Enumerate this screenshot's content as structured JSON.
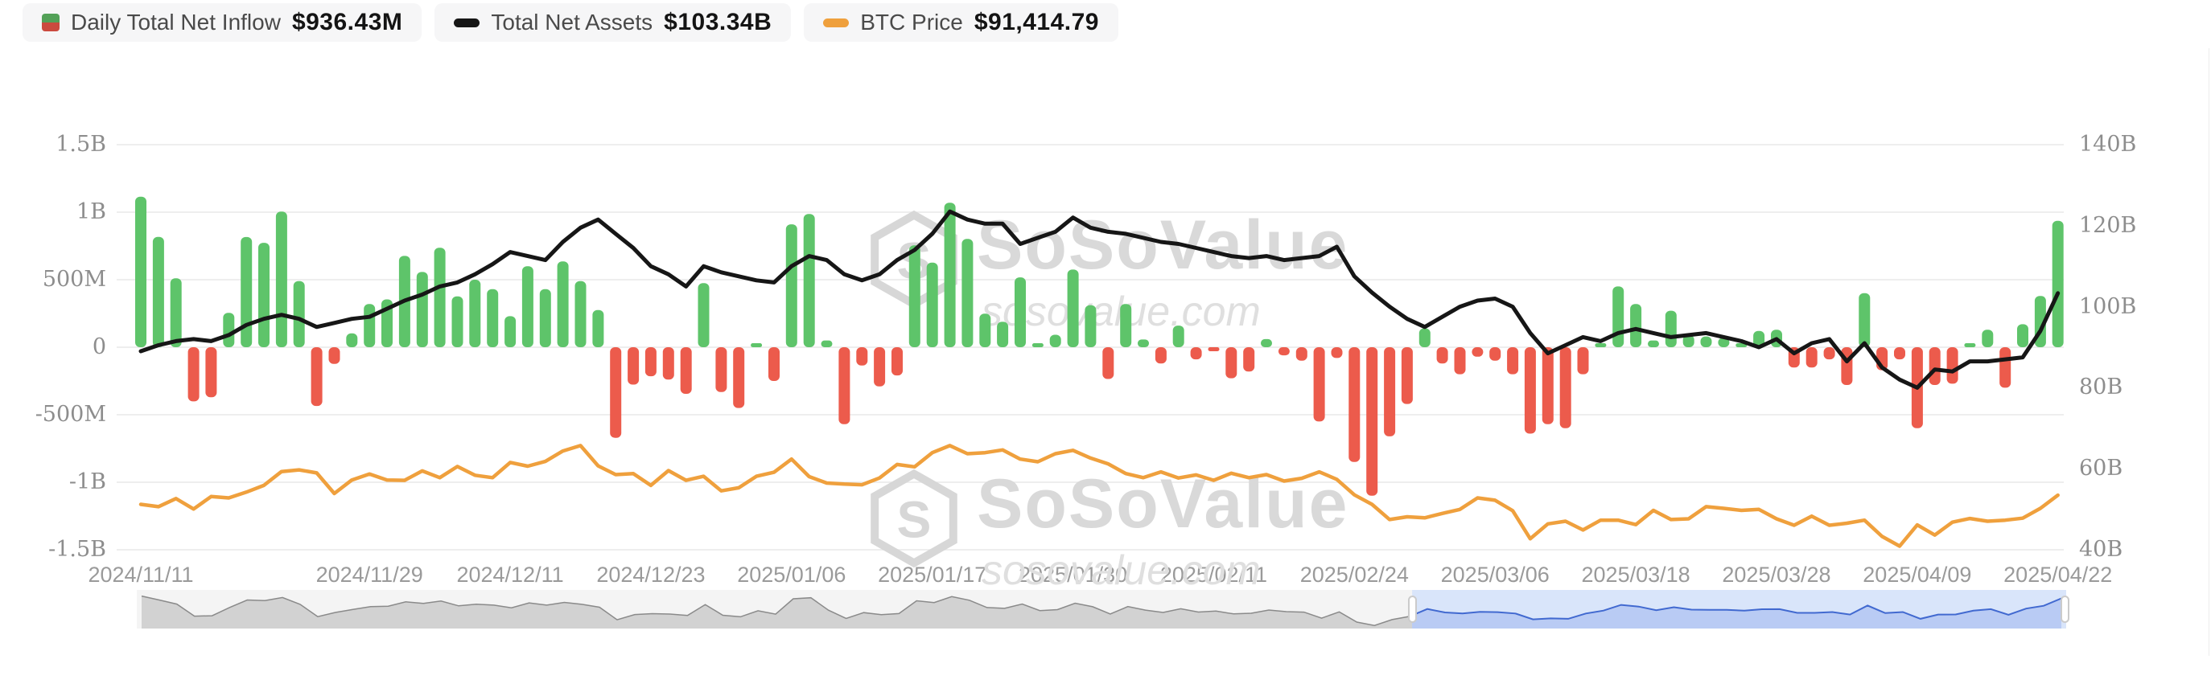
{
  "legend": [
    {
      "label": "Daily Total Net Inflow",
      "value": "$936.43M",
      "icon": "inflow-square"
    },
    {
      "label": "Total Net Assets",
      "value": "$103.34B",
      "icon": "black-dash"
    },
    {
      "label": "BTC Price",
      "value": "$91,414.79",
      "icon": "orange-dash"
    }
  ],
  "watermark": {
    "title": "SoSoValue",
    "domain": "sosovalue.com",
    "logo": "S"
  },
  "colors": {
    "bar_positive": "#5ec46a",
    "bar_negative": "#ec5b4c",
    "net_assets_line": "#161616",
    "btc_line": "#efa03d",
    "grid": "#e9e9e9",
    "legend_square_green": "#53a158",
    "legend_square_red": "#cb4a3e",
    "nav_gray_fill": "#d2d2d2",
    "nav_gray_line": "#8a8a8a",
    "nav_selected_bg": "#d9e5fa",
    "nav_selected_fill": "#b9cbf4",
    "nav_selected_line": "#4169d0"
  },
  "navigator": {
    "selection_start_ratio": 0.661,
    "selection_end_ratio": 1.0
  },
  "chart_data": {
    "type": "combo",
    "title": "",
    "grid": "horizontal",
    "left_axis": {
      "labels": [
        "1.5B",
        "1B",
        "500M",
        "0",
        "-500M",
        "-1B",
        "-1.5B"
      ],
      "min": -1500,
      "max": 1500,
      "unit": "USD"
    },
    "right_axis": {
      "labels": [
        "140B",
        "120B",
        "100B",
        "80B",
        "60B",
        "40B"
      ],
      "min": 40,
      "max": 140,
      "unit": "USD billions"
    },
    "x_ticks": [
      {
        "label": "2024/11/11",
        "index": 0
      },
      {
        "label": "2024/11/29",
        "index": 13
      },
      {
        "label": "2024/12/11",
        "index": 21
      },
      {
        "label": "2024/12/23",
        "index": 29
      },
      {
        "label": "2025/01/06",
        "index": 37
      },
      {
        "label": "2025/01/17",
        "index": 45
      },
      {
        "label": "2025/01/30",
        "index": 53
      },
      {
        "label": "2025/02/11",
        "index": 61
      },
      {
        "label": "2025/02/24",
        "index": 69
      },
      {
        "label": "2025/03/06",
        "index": 77
      },
      {
        "label": "2025/03/18",
        "index": 85
      },
      {
        "label": "2025/03/28",
        "index": 93
      },
      {
        "label": "2025/04/09",
        "index": 101
      },
      {
        "label": "2025/04/22",
        "index": 109
      }
    ],
    "x": [
      "2024/11/11",
      "2024/11/12",
      "2024/11/13",
      "2024/11/14",
      "2024/11/15",
      "2024/11/18",
      "2024/11/19",
      "2024/11/20",
      "2024/11/21",
      "2024/11/22",
      "2024/11/25",
      "2024/11/26",
      "2024/11/27",
      "2024/11/29",
      "2024/12/02",
      "2024/12/03",
      "2024/12/04",
      "2024/12/05",
      "2024/12/06",
      "2024/12/09",
      "2024/12/10",
      "2024/12/11",
      "2024/12/12",
      "2024/12/13",
      "2024/12/16",
      "2024/12/17",
      "2024/12/18",
      "2024/12/19",
      "2024/12/20",
      "2024/12/23",
      "2024/12/24",
      "2024/12/26",
      "2024/12/27",
      "2024/12/30",
      "2024/12/31",
      "2025/01/02",
      "2025/01/03",
      "2025/01/06",
      "2025/01/07",
      "2025/01/08",
      "2025/01/10",
      "2025/01/13",
      "2025/01/14",
      "2025/01/15",
      "2025/01/16",
      "2025/01/17",
      "2025/01/21",
      "2025/01/22",
      "2025/01/23",
      "2025/01/24",
      "2025/01/27",
      "2025/01/28",
      "2025/01/29",
      "2025/01/30",
      "2025/01/31",
      "2025/02/03",
      "2025/02/04",
      "2025/02/05",
      "2025/02/06",
      "2025/02/07",
      "2025/02/10",
      "2025/02/11",
      "2025/02/12",
      "2025/02/13",
      "2025/02/14",
      "2025/02/18",
      "2025/02/19",
      "2025/02/20",
      "2025/02/21",
      "2025/02/24",
      "2025/02/25",
      "2025/02/26",
      "2025/02/27",
      "2025/02/28",
      "2025/03/03",
      "2025/03/04",
      "2025/03/05",
      "2025/03/06",
      "2025/03/07",
      "2025/03/10",
      "2025/03/11",
      "2025/03/12",
      "2025/03/13",
      "2025/03/14",
      "2025/03/17",
      "2025/03/18",
      "2025/03/19",
      "2025/03/20",
      "2025/03/21",
      "2025/03/24",
      "2025/03/25",
      "2025/03/26",
      "2025/03/27",
      "2025/03/28",
      "2025/03/31",
      "2025/04/01",
      "2025/04/02",
      "2025/04/03",
      "2025/04/04",
      "2025/04/07",
      "2025/04/08",
      "2025/04/09",
      "2025/04/10",
      "2025/04/11",
      "2025/04/14",
      "2025/04/15",
      "2025/04/16",
      "2025/04/17",
      "2025/04/21",
      "2025/04/22"
    ],
    "series": [
      {
        "name": "Daily Total Net Inflow",
        "type": "bar",
        "axis": "left",
        "unit": "USD millions",
        "values": [
          1114,
          817,
          510,
          -401,
          -370,
          255,
          816,
          773,
          1005,
          490,
          -435,
          -123,
          103,
          320,
          354,
          676,
          557,
          737,
          377,
          500,
          430,
          230,
          600,
          430,
          636,
          490,
          275,
          -671,
          -277,
          -215,
          -240,
          -345,
          475,
          -332,
          -450,
          5,
          -250,
          910,
          987,
          50,
          -570,
          -135,
          -290,
          -209,
          755,
          626,
          1070,
          802,
          249,
          188,
          517,
          18,
          92,
          575,
          311,
          -235,
          320,
          57,
          -120,
          160,
          -90,
          -20,
          -230,
          -180,
          60,
          -60,
          -100,
          -550,
          -80,
          -850,
          -1100,
          -660,
          -420,
          140,
          -120,
          -200,
          -70,
          -100,
          -200,
          -640,
          -570,
          -600,
          -200,
          20,
          450,
          320,
          50,
          270,
          90,
          80,
          70,
          10,
          120,
          130,
          -150,
          -150,
          -90,
          -280,
          400,
          -170,
          -90,
          -600,
          -280,
          -270,
          15,
          130,
          -300,
          170,
          380,
          936.43
        ]
      },
      {
        "name": "Total Net Assets",
        "type": "line",
        "axis": "right",
        "unit": "USD billions",
        "values": [
          89,
          90.5,
          91.5,
          92,
          91.5,
          93,
          95.5,
          97,
          98,
          97,
          95,
          96,
          97,
          97.5,
          99.5,
          101.5,
          103,
          105,
          106,
          108,
          110.5,
          113.5,
          112.5,
          111.5,
          116,
          119.5,
          121.5,
          118,
          114.5,
          110,
          108,
          105,
          110,
          108.5,
          107.5,
          106.5,
          106,
          110,
          112.5,
          111.5,
          108,
          106.5,
          108,
          111.5,
          114,
          118,
          123.5,
          121.5,
          120.5,
          120.5,
          115.5,
          117,
          118.5,
          122,
          119.5,
          118.5,
          118,
          117,
          116,
          115.5,
          114.5,
          113.5,
          112.5,
          112,
          112.5,
          111.5,
          112,
          112.5,
          114.8,
          107.5,
          103.5,
          100,
          97,
          95,
          97.5,
          100,
          101.5,
          102,
          100,
          93.5,
          88.5,
          90.5,
          92.5,
          91.5,
          93.5,
          94.5,
          93.5,
          92.5,
          93,
          93.5,
          92.5,
          91.5,
          90,
          92,
          88.5,
          91,
          92,
          86.5,
          91,
          85,
          82,
          80,
          84.5,
          84,
          86.5,
          86.5,
          87,
          87.5,
          94,
          103.34
        ]
      },
      {
        "name": "BTC Price",
        "type": "line",
        "axis": "hidden",
        "unit": "USD thousands",
        "values": [
          88.7,
          88.0,
          90.4,
          87.3,
          91.0,
          90.6,
          92.3,
          94.3,
          98.4,
          98.9,
          98.0,
          91.9,
          95.9,
          97.7,
          95.9,
          95.8,
          98.6,
          96.6,
          99.9,
          97.3,
          96.6,
          101.1,
          100.0,
          101.4,
          104.5,
          106.1,
          100.1,
          97.5,
          97.8,
          94.3,
          98.7,
          95.8,
          97.0,
          92.7,
          93.6,
          97.0,
          98.2,
          102.1,
          96.9,
          95.0,
          94.7,
          94.5,
          96.5,
          100.5,
          99.8,
          104.0,
          106.1,
          103.7,
          104.0,
          104.8,
          102.1,
          101.3,
          103.7,
          104.7,
          102.4,
          100.7,
          97.8,
          96.6,
          98.3,
          96.5,
          97.4,
          95.8,
          97.9,
          96.6,
          97.5,
          95.6,
          96.4,
          98.3,
          96.1,
          91.5,
          88.7,
          84.2,
          85.0,
          84.7,
          86.0,
          87.2,
          90.6,
          89.9,
          86.8,
          78.5,
          82.9,
          83.7,
          81.1,
          84.0,
          84.0,
          82.7,
          86.9,
          84.2,
          84.4,
          88.0,
          87.5,
          86.9,
          87.2,
          84.4,
          82.5,
          85.2,
          82.5,
          83.1,
          84.0,
          79.2,
          76.3,
          82.6,
          79.6,
          83.4,
          84.5,
          83.7,
          84.0,
          84.6,
          87.5,
          91.41
        ]
      }
    ]
  }
}
